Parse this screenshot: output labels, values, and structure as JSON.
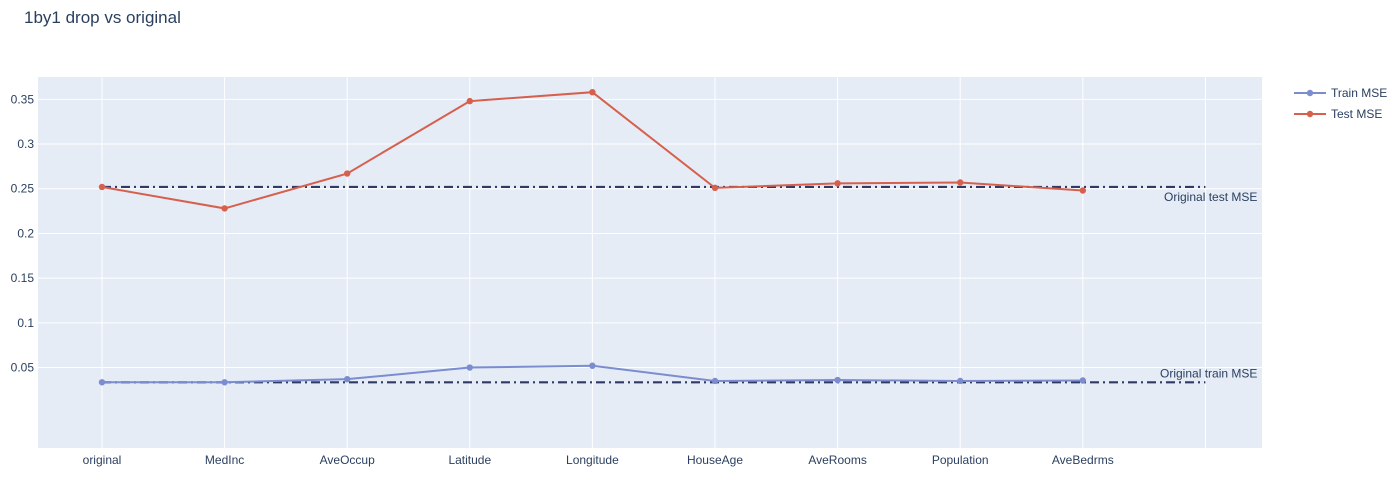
{
  "chart_data": {
    "type": "line",
    "title": "1by1 drop vs original",
    "categories": [
      "original",
      "MedInc",
      "AveOccup",
      "Latitude",
      "Longitude",
      "HouseAge",
      "AveRooms",
      "Population",
      "AveBedrms"
    ],
    "series": [
      {
        "name": "Train MSE",
        "color": "#7b8ccf",
        "values": [
          0.0335,
          0.0335,
          0.037,
          0.05,
          0.052,
          0.035,
          0.036,
          0.035,
          0.0355
        ]
      },
      {
        "name": "Test MSE",
        "color": "#d6604d",
        "values": [
          0.252,
          0.228,
          0.267,
          0.348,
          0.358,
          0.251,
          0.256,
          0.257,
          0.248
        ]
      }
    ],
    "reference_lines": [
      {
        "label": "Original test MSE",
        "value": 0.252,
        "color": "#2f3a66",
        "style": "dash-dot"
      },
      {
        "label": "Original train MSE",
        "value": 0.0335,
        "color": "#2f3a66",
        "style": "dash-dot"
      }
    ],
    "ylim": [
      -0.04,
      0.375
    ],
    "yticks": [
      0.05,
      0.1,
      0.15,
      0.2,
      0.25,
      0.3,
      0.35
    ],
    "ytick_labels": [
      "0.05",
      "0.1",
      "0.15",
      "0.2",
      "0.25",
      "0.3",
      "0.35"
    ],
    "xlabel": "",
    "ylabel": "",
    "grid": true,
    "legend": "top-right",
    "plot_bgcolor": "#e5ecf6",
    "grid_color": "#ffffff"
  }
}
